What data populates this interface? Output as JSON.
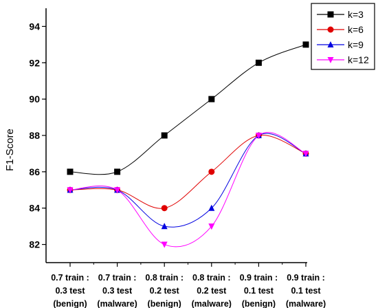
{
  "chart_data": {
    "type": "line",
    "title": "",
    "xlabel": "",
    "ylabel": "F1-Score",
    "ylim": [
      81,
      95
    ],
    "yticks": [
      82,
      84,
      86,
      88,
      90,
      92,
      94
    ],
    "categories": [
      [
        "0.7 train :",
        "0.3 test",
        "(benign)"
      ],
      [
        "0.7 train :",
        "0.3 test",
        "(malware)"
      ],
      [
        "0.8 train :",
        "0.2 test",
        "(benign)"
      ],
      [
        "0.8 train :",
        "0.2 test",
        "(malware)"
      ],
      [
        "0.9 train :",
        "0.1 test",
        "(benign)"
      ],
      [
        "0.9 train :",
        "0.1 test",
        "(malware)"
      ]
    ],
    "series": [
      {
        "name": "k=3",
        "color": "#000000",
        "marker": "square",
        "values": [
          86,
          86,
          88,
          90,
          92,
          93
        ]
      },
      {
        "name": "k=6",
        "color": "#e00000",
        "marker": "circle",
        "values": [
          85,
          85,
          84,
          86,
          88,
          87
        ]
      },
      {
        "name": "k=9",
        "color": "#0000e0",
        "marker": "triangle-up",
        "values": [
          85,
          85,
          83,
          84,
          88,
          87
        ]
      },
      {
        "name": "k=12",
        "color": "#ff00ff",
        "marker": "triangle-down",
        "values": [
          85,
          85,
          82,
          83,
          88,
          87
        ]
      }
    ],
    "grid": false,
    "legend": "top-right",
    "smooth": true
  }
}
